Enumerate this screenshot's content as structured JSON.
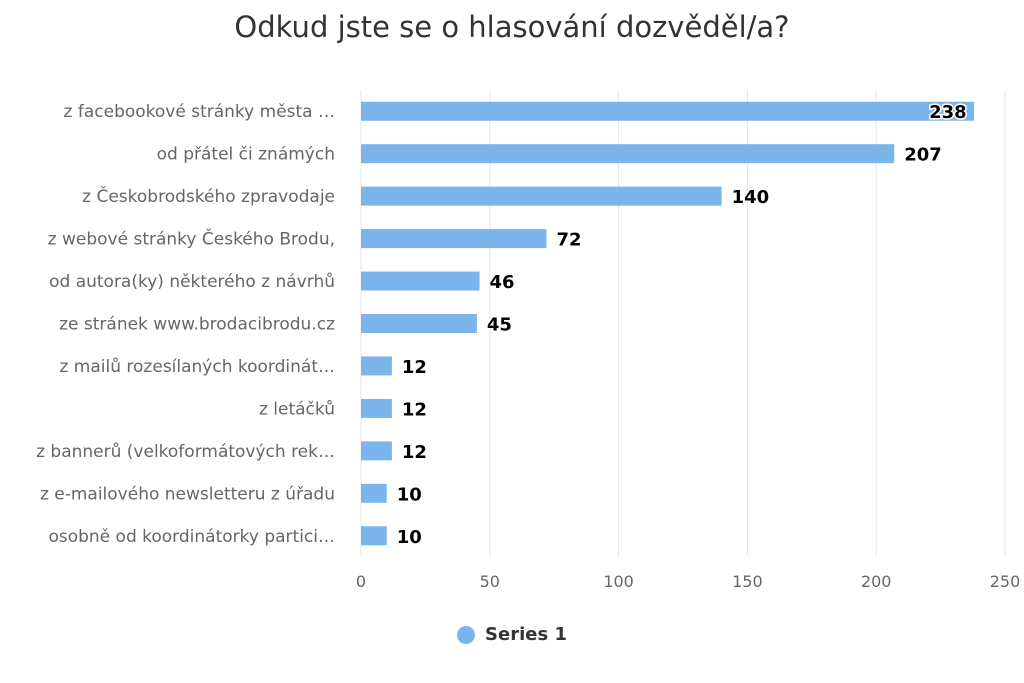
{
  "chart_data": {
    "type": "bar",
    "orientation": "horizontal",
    "title": "Odkud jste se o hlasování dozvěděl/a?",
    "categories": [
      "z facebookové stránky města …",
      "od přátel či známých",
      "z Českobrodského zpravodaje",
      "z webové stránky Českého Brodu,",
      "od autora(ky) některého z návrhů",
      "ze stránek www.brodacibrodu.cz",
      "z mailů rozesílaných koordinát…",
      "z letáčků",
      "z bannerů (velkoformátových rek…",
      "z e-mailového newsletteru z úřadu",
      "osobně od koordinátorky partici…"
    ],
    "series": [
      {
        "name": "Series 1",
        "values": [
          238,
          207,
          140,
          72,
          46,
          45,
          12,
          12,
          12,
          10,
          10
        ]
      }
    ],
    "xlim": [
      0,
      250
    ],
    "ticks": [
      "0",
      "50",
      "100",
      "150",
      "200",
      "250"
    ],
    "grid": true,
    "legend": "bottom-center",
    "colors": {
      "bar": "#7cb5ec",
      "grid": "#e6e6e6"
    }
  }
}
